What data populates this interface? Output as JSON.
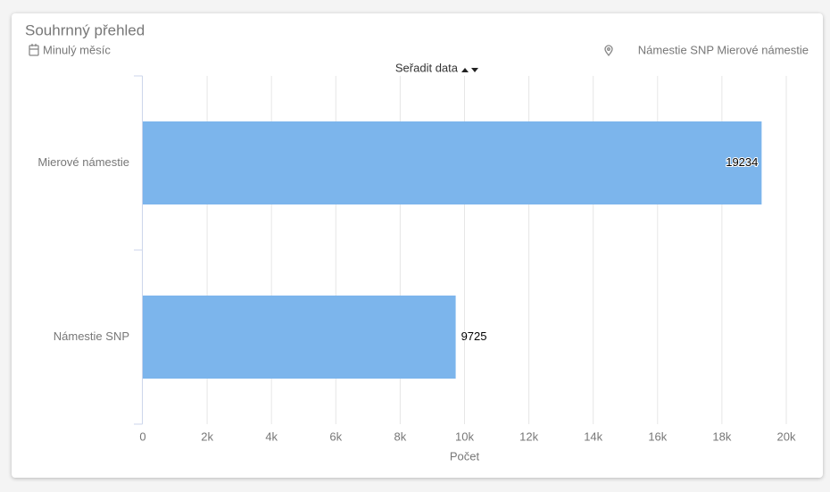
{
  "card": {
    "title": "Souhrnný přehled",
    "period": "Minulý měsíc",
    "locations": "Námestie SNP Mierové námestie",
    "sort_label": "Seřadit data"
  },
  "chart_data": {
    "type": "bar",
    "orientation": "horizontal",
    "categories": [
      "Mierové námestie",
      "Námestie SNP"
    ],
    "values": [
      19234,
      9725
    ],
    "color": "#7cb5ec",
    "xlim": [
      0,
      20000
    ],
    "xticks": [
      0,
      {
        "value": 2000,
        "label": "2k"
      },
      {
        "value": 4000,
        "label": "4k"
      },
      {
        "value": 6000,
        "label": "6k"
      },
      {
        "value": 8000,
        "label": "8k"
      },
      {
        "value": 10000,
        "label": "10k"
      },
      {
        "value": 12000,
        "label": "12k"
      },
      {
        "value": 14000,
        "label": "14k"
      },
      {
        "value": 16000,
        "label": "16k"
      },
      {
        "value": 18000,
        "label": "18k"
      },
      {
        "value": 20000,
        "label": "20k"
      }
    ],
    "x_label": "Počet",
    "grid": true
  }
}
